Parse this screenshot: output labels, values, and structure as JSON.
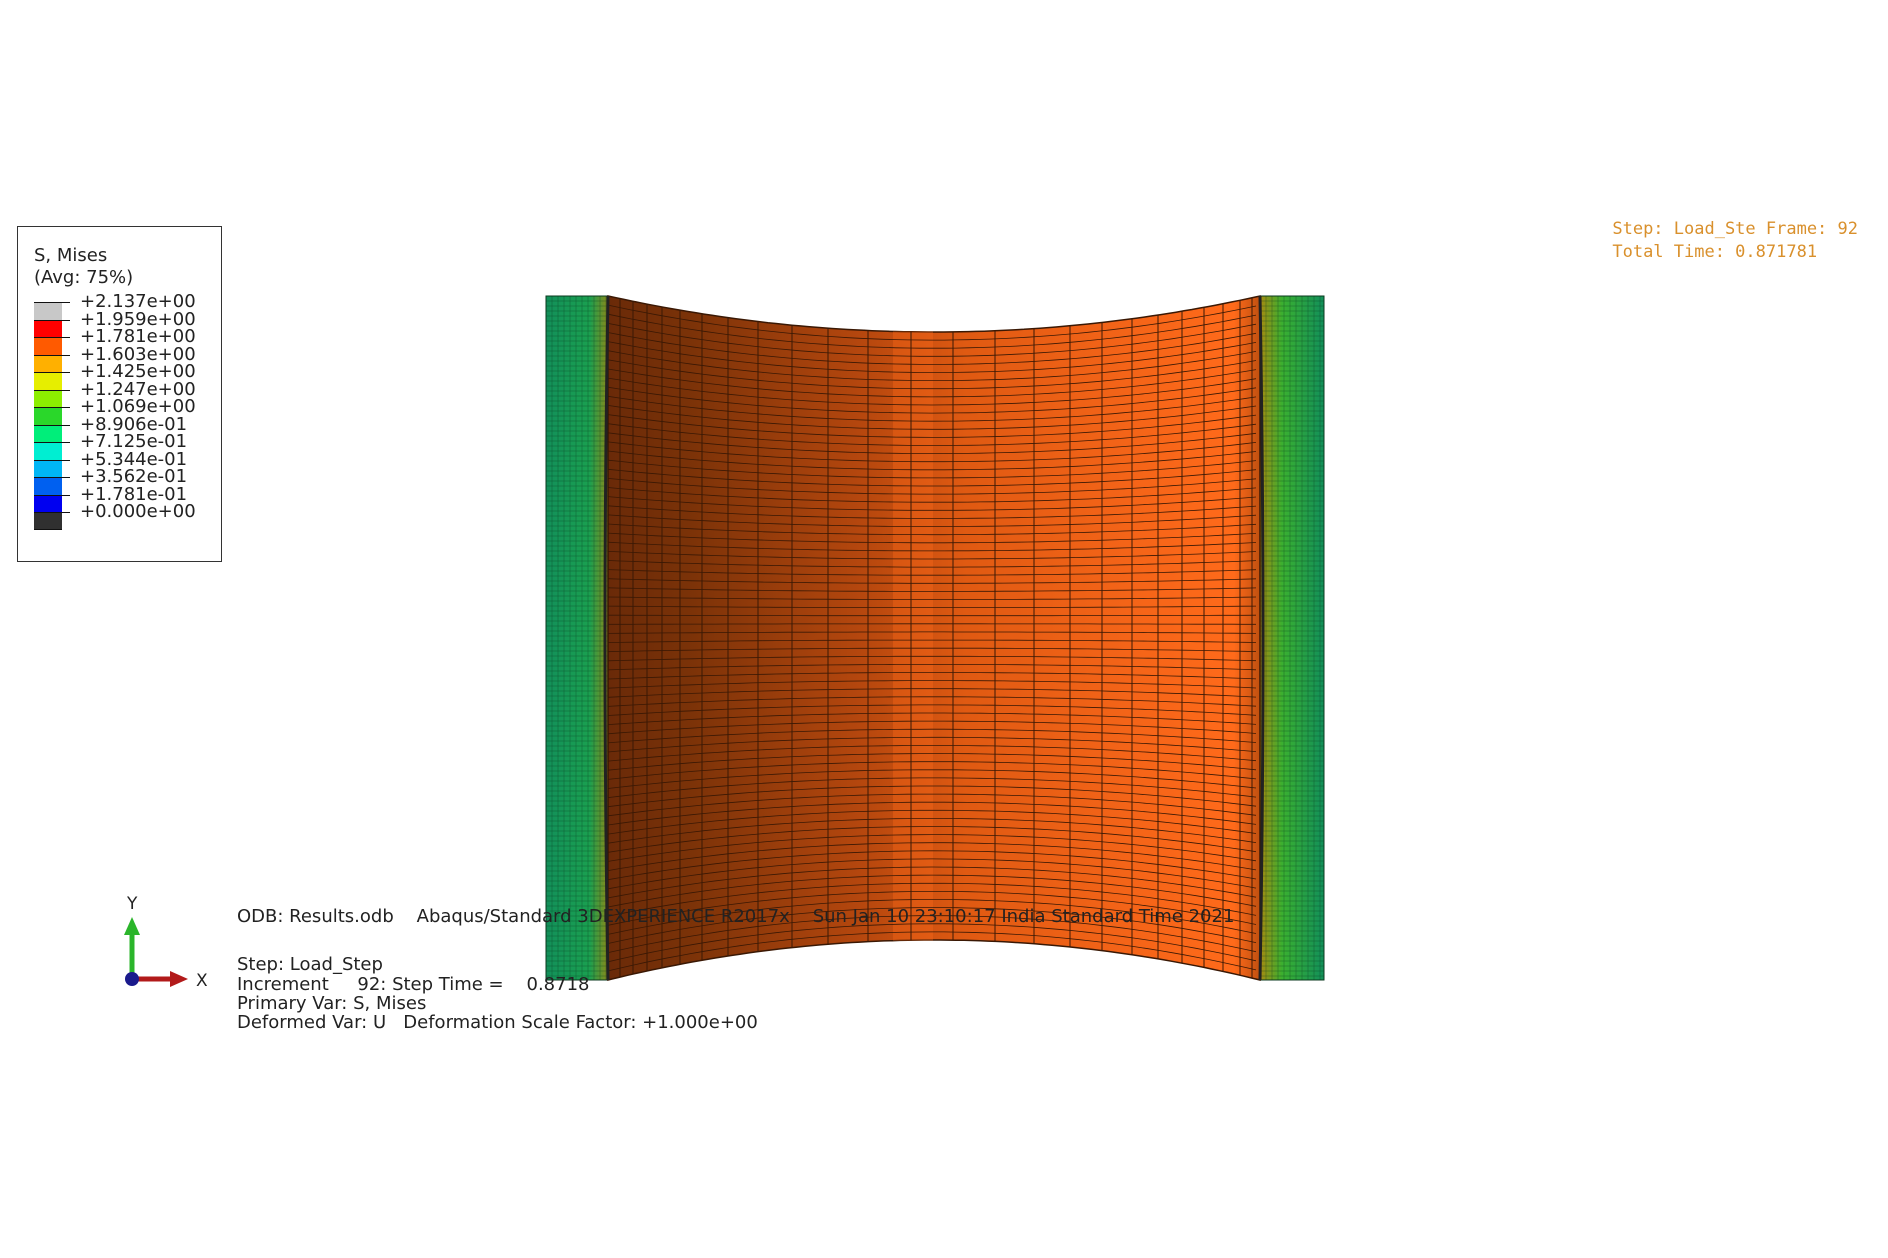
{
  "legend": {
    "title_line1": "S, Mises",
    "title_line2": "(Avg: 75%)",
    "levels": [
      "+2.137e+00",
      "+1.959e+00",
      "+1.781e+00",
      "+1.603e+00",
      "+1.425e+00",
      "+1.247e+00",
      "+1.069e+00",
      "+8.906e-01",
      "+7.125e-01",
      "+5.344e-01",
      "+3.562e-01",
      "+1.781e-01",
      "+0.000e+00"
    ],
    "colors": [
      "#c8c8c8",
      "#ff0000",
      "#ff5a00",
      "#ffb000",
      "#e6ee00",
      "#8cee00",
      "#2ad72a",
      "#00ee7a",
      "#00eed2",
      "#00b6f5",
      "#0060f0",
      "#0000f0",
      "#303030"
    ]
  },
  "status": {
    "line1": "Step: Load_Ste Frame: 92",
    "line2": "Total Time: 0.871781"
  },
  "info": {
    "odb_line": "ODB: Results.odb    Abaqus/Standard 3DEXPERIENCE R2017x    Sun Jan 10 23:10:17 India Standard Time 2021",
    "step_line": "Step: Load_Step",
    "increment_line": "Increment     92: Step Time =    0.8718",
    "primary_line": "Primary Var: S, Mises",
    "deformed_line": "Deformed Var: U   Deformation Scale Factor: +1.000e+00"
  },
  "triad": {
    "y_label": "Y",
    "x_label": "X"
  },
  "colors": {
    "mesh_orange": "#ff6a1a",
    "mesh_dark": "#8a3a0c",
    "mesh_green": "#14a050",
    "status_text": "#d9902c"
  }
}
